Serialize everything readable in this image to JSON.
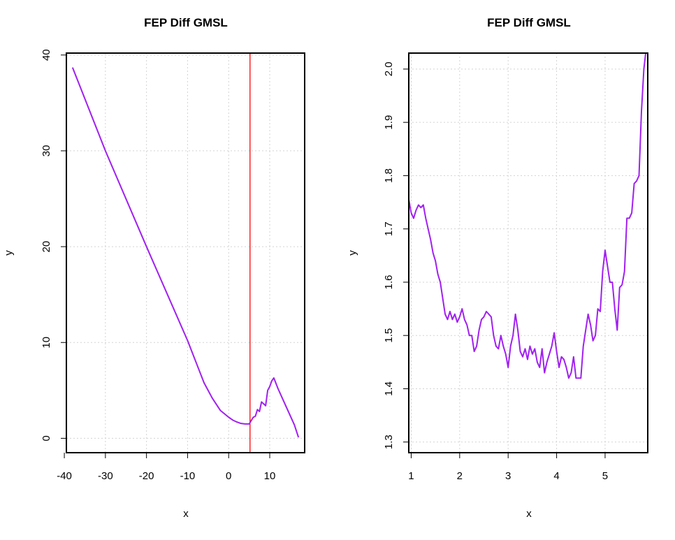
{
  "chart_data": [
    {
      "type": "line",
      "title": "FEP Diff GMSL",
      "xlabel": "x",
      "ylabel": "y",
      "xlim": [
        -39.5,
        18.5
      ],
      "ylim": [
        -1.5,
        40.2
      ],
      "xticks": [
        -40,
        -30,
        -20,
        -10,
        0,
        10
      ],
      "yticks": [
        0,
        10,
        20,
        30,
        40
      ],
      "grid": true,
      "series_color": "#a020f0",
      "vline": {
        "x": 5.2,
        "color": "#ff0000"
      },
      "x": [
        -38,
        -30,
        -20,
        -10,
        -8,
        -6,
        -4,
        -2,
        0,
        1,
        2,
        3,
        4,
        5,
        6,
        6.5,
        7,
        7.5,
        8,
        8.5,
        9,
        9.5,
        10,
        10.5,
        11,
        12,
        14,
        16,
        17
      ],
      "y": [
        38.7,
        30.0,
        20.0,
        10.2,
        8.0,
        5.8,
        4.2,
        2.9,
        2.2,
        1.9,
        1.7,
        1.55,
        1.5,
        1.5,
        2.2,
        2.3,
        3.0,
        2.8,
        3.8,
        3.6,
        3.4,
        5.0,
        5.4,
        6.0,
        6.3,
        5.2,
        3.3,
        1.4,
        0.1
      ]
    },
    {
      "type": "line",
      "title": "FEP Diff GMSL",
      "xlabel": "x",
      "ylabel": "y",
      "xlim": [
        0.95,
        5.88
      ],
      "ylim": [
        1.28,
        2.03
      ],
      "xticks": [
        1,
        2,
        3,
        4,
        5
      ],
      "yticks": [
        1.3,
        1.4,
        1.5,
        1.6,
        1.7,
        1.8,
        1.9,
        2.0
      ],
      "grid": true,
      "series_color": "#a020f0",
      "x": [
        0.95,
        1.0,
        1.05,
        1.1,
        1.15,
        1.2,
        1.25,
        1.3,
        1.35,
        1.4,
        1.45,
        1.5,
        1.55,
        1.6,
        1.65,
        1.7,
        1.75,
        1.8,
        1.85,
        1.9,
        1.95,
        2.0,
        2.05,
        2.1,
        2.15,
        2.2,
        2.25,
        2.3,
        2.35,
        2.4,
        2.45,
        2.5,
        2.55,
        2.6,
        2.65,
        2.7,
        2.75,
        2.8,
        2.85,
        2.9,
        2.95,
        3.0,
        3.05,
        3.1,
        3.15,
        3.2,
        3.25,
        3.3,
        3.35,
        3.4,
        3.45,
        3.5,
        3.55,
        3.6,
        3.65,
        3.7,
        3.75,
        3.8,
        3.85,
        3.9,
        3.95,
        4.0,
        4.05,
        4.1,
        4.15,
        4.2,
        4.25,
        4.3,
        4.35,
        4.4,
        4.45,
        4.5,
        4.55,
        4.6,
        4.65,
        4.7,
        4.75,
        4.8,
        4.85,
        4.9,
        4.95,
        5.0,
        5.05,
        5.1,
        5.15,
        5.2,
        5.25,
        5.3,
        5.35,
        5.4,
        5.45,
        5.5,
        5.55,
        5.6,
        5.65,
        5.7,
        5.75,
        5.8,
        5.85
      ],
      "y": [
        1.755,
        1.73,
        1.72,
        1.735,
        1.745,
        1.74,
        1.745,
        1.72,
        1.7,
        1.68,
        1.655,
        1.64,
        1.615,
        1.6,
        1.57,
        1.54,
        1.53,
        1.545,
        1.53,
        1.54,
        1.525,
        1.535,
        1.55,
        1.53,
        1.52,
        1.5,
        1.5,
        1.47,
        1.48,
        1.51,
        1.53,
        1.535,
        1.545,
        1.54,
        1.535,
        1.5,
        1.48,
        1.475,
        1.5,
        1.48,
        1.465,
        1.44,
        1.48,
        1.5,
        1.54,
        1.51,
        1.47,
        1.46,
        1.475,
        1.455,
        1.48,
        1.465,
        1.475,
        1.45,
        1.44,
        1.475,
        1.43,
        1.45,
        1.465,
        1.48,
        1.505,
        1.47,
        1.44,
        1.46,
        1.455,
        1.44,
        1.42,
        1.43,
        1.46,
        1.42,
        1.42,
        1.42,
        1.48,
        1.51,
        1.54,
        1.52,
        1.49,
        1.5,
        1.55,
        1.545,
        1.62,
        1.66,
        1.63,
        1.6,
        1.6,
        1.55,
        1.51,
        1.59,
        1.595,
        1.62,
        1.72,
        1.72,
        1.73,
        1.785,
        1.79,
        1.8,
        1.92,
        2.0,
        2.04
      ]
    }
  ]
}
